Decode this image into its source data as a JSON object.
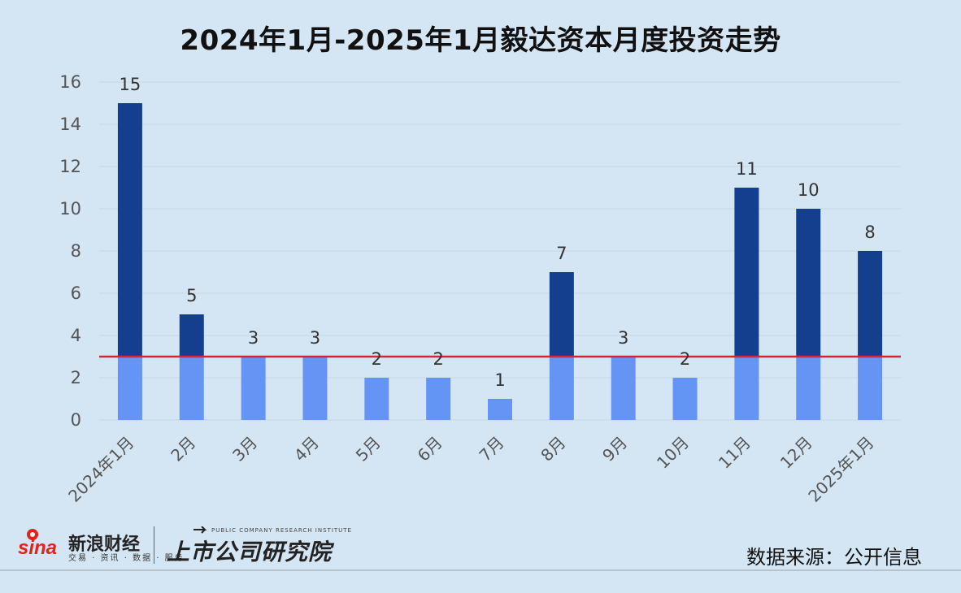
{
  "chart_data": {
    "type": "bar",
    "title": "2024年1月-2025年1月毅达资本月度投资走势",
    "categories": [
      "2024年1月",
      "2月",
      "3月",
      "4月",
      "5月",
      "6月",
      "7月",
      "8月",
      "9月",
      "10月",
      "11月",
      "12月",
      "2025年1月"
    ],
    "values": [
      15,
      5,
      3,
      3,
      2,
      2,
      1,
      7,
      3,
      2,
      11,
      10,
      8
    ],
    "data_labels": [
      "15",
      "5",
      "3",
      "3",
      "2",
      "2",
      "1",
      "7",
      "3",
      "2",
      "11",
      "10",
      "8"
    ],
    "yticks": [
      "0",
      "2",
      "4",
      "6",
      "8",
      "10",
      "12",
      "14",
      "16"
    ],
    "ylim": [
      0,
      16
    ],
    "reference_line": 3,
    "grid": true,
    "legend": "none",
    "colors": {
      "below_reference": "#6495f5",
      "above_reference": "#143f8f",
      "reference_line": "#d9262c",
      "grid": "#c8d6e2"
    }
  },
  "footer": {
    "brand": "新浪财经",
    "brand_sub": "交易 · 资讯 · 数据 · 服务",
    "logo_text": "sina",
    "pcri_en": "PUBLIC COMPANY RESEARCH INSTITUTE",
    "pcri_cn": "上市公司研究院",
    "source": "数据来源：公开信息"
  }
}
